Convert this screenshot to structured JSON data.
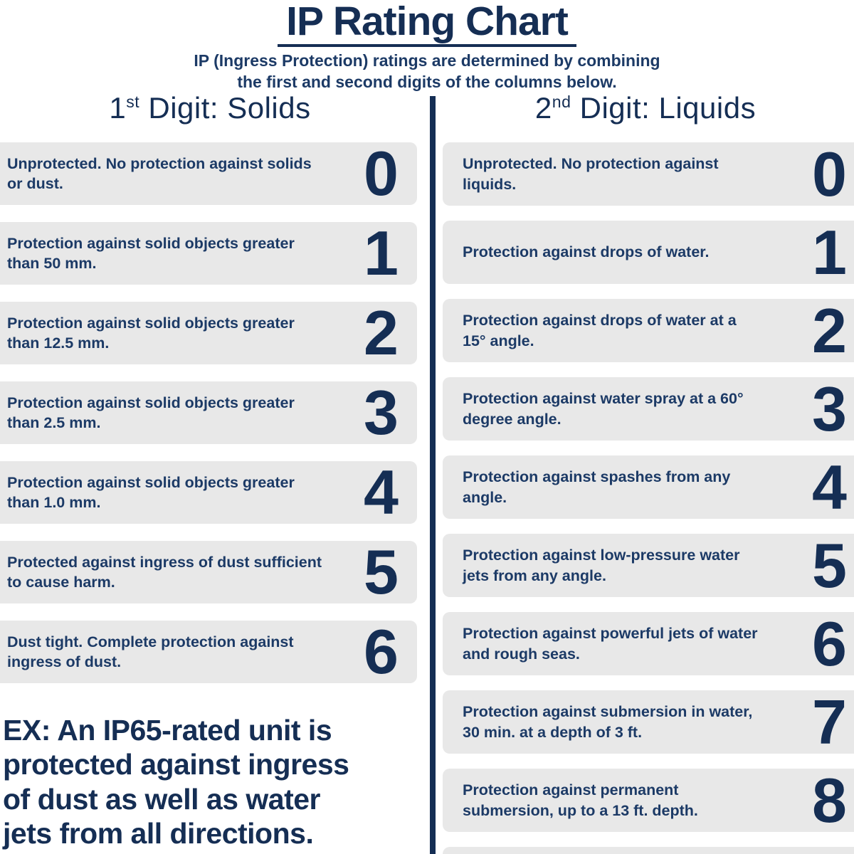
{
  "palette": {
    "navy": "#1c3a66",
    "navy_dark": "#152e54",
    "box_gray": "#e8e8e8",
    "background": "#ffffff"
  },
  "header": {
    "title": "IP Rating Chart",
    "subtitle": "IP (Ingress Protection) ratings are determined by combining\nthe first and second digits of the columns below."
  },
  "columns": {
    "left": {
      "heading": {
        "number": "1",
        "ordinal": "st",
        "rest": " Digit: Solids"
      },
      "rows": [
        {
          "digit": "0",
          "text": "Unprotected. No protection against solids or dust."
        },
        {
          "digit": "1",
          "text": "Protection against solid objects greater than 50 mm."
        },
        {
          "digit": "2",
          "text": "Protection against solid objects greater than 12.5 mm."
        },
        {
          "digit": "3",
          "text": "Protection against solid objects greater than 2.5 mm."
        },
        {
          "digit": "4",
          "text": "Protection against solid objects greater than 1.0 mm."
        },
        {
          "digit": "5",
          "text": "Protected against ingress of dust sufficient to cause harm."
        },
        {
          "digit": "6",
          "text": "Dust tight. Complete protection against ingress of dust."
        }
      ],
      "example": "EX: An IP65-rated unit is\nprotected against ingress\nof dust as well as water\njets from all directions."
    },
    "right": {
      "heading": {
        "number": "2",
        "ordinal": "nd",
        "rest": " Digit: Liquids"
      },
      "rows": [
        {
          "digit": "0",
          "text": "Unprotected. No protection against liquids."
        },
        {
          "digit": "1",
          "text": "Protection against drops of water."
        },
        {
          "digit": "2",
          "text": "Protection against drops of water at a 15° angle."
        },
        {
          "digit": "3",
          "text": "Protection against water spray at a 60° degree angle."
        },
        {
          "digit": "4",
          "text": "Protection against spashes from any angle."
        },
        {
          "digit": "5",
          "text": "Protection against low-pressure water jets from any angle."
        },
        {
          "digit": "6",
          "text": "Protection against powerful jets of water and rough seas."
        },
        {
          "digit": "7",
          "text": "Protection against submersion in water, 30 min. at a depth of 3 ft."
        },
        {
          "digit": "8",
          "text": "Protection against permanent submersion, up to a 13 ft. depth."
        }
      ]
    }
  }
}
